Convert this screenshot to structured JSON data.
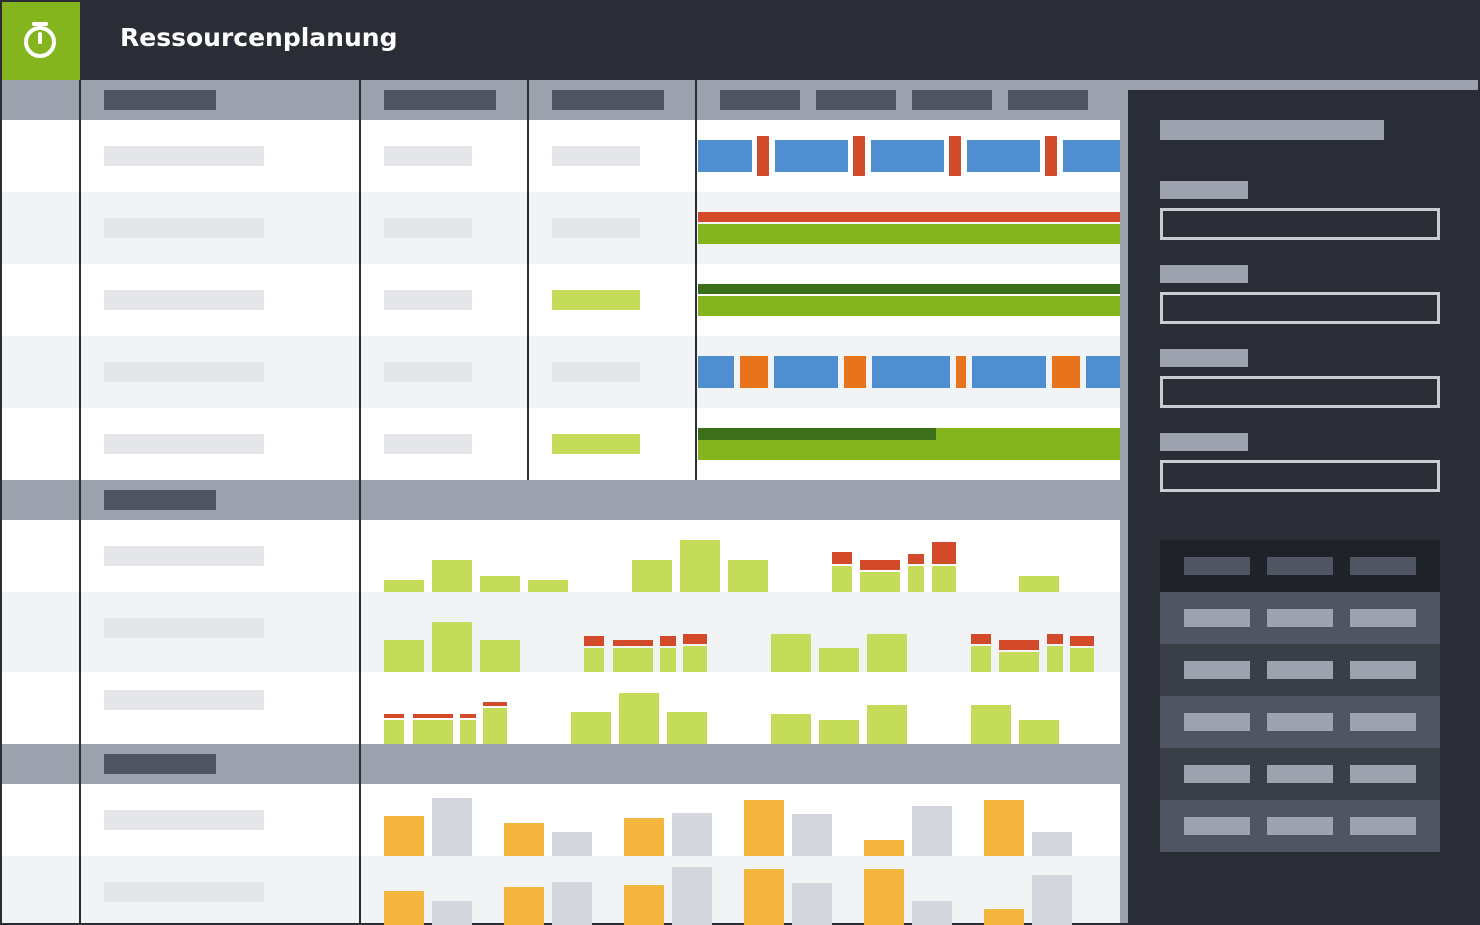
{
  "header": {
    "title": "Ressourcenplanung"
  }
}
